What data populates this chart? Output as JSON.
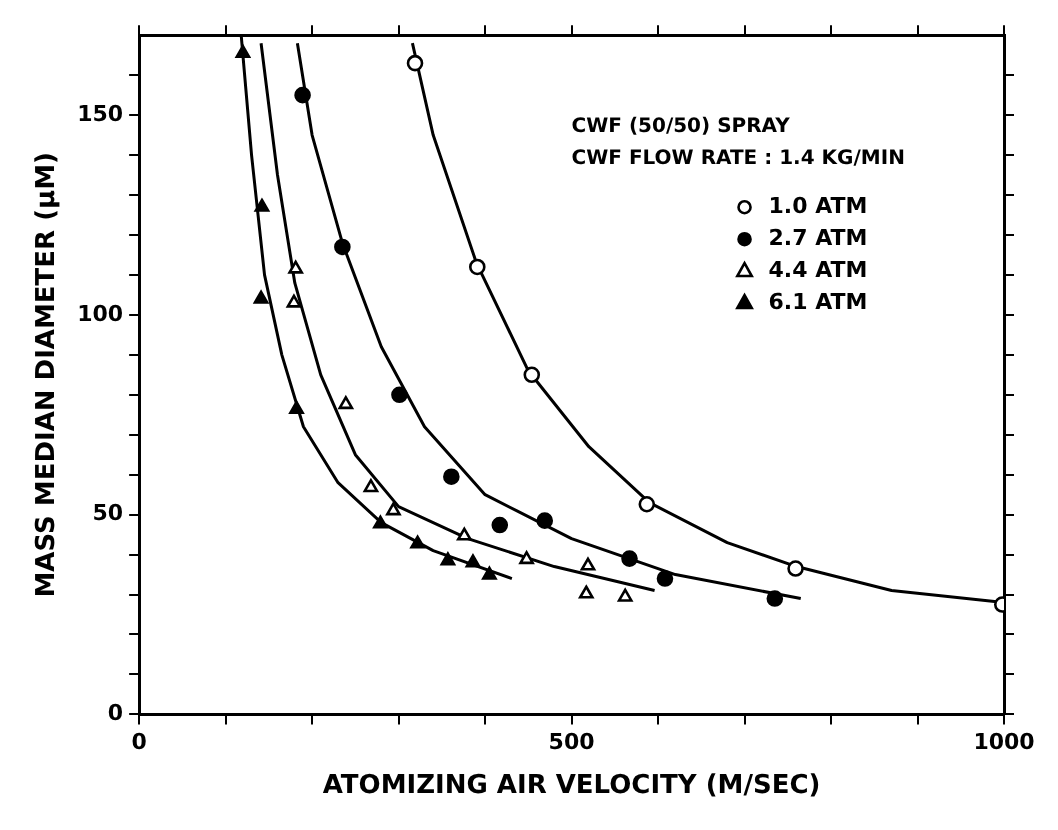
{
  "chart_data": {
    "type": "scatter",
    "xlabel": "ATOMIZING AIR VELOCITY (M/SEC)",
    "ylabel": "MASS MEDIAN DIAMETER (μM)",
    "xlim": [
      0,
      1000
    ],
    "ylim": [
      0,
      170
    ],
    "xticks": [
      0,
      {
        "value": 100,
        "label": null
      },
      {
        "value": 200,
        "label": null
      },
      {
        "value": 300,
        "label": null
      },
      {
        "value": 400,
        "label": null
      },
      500,
      {
        "value": 600,
        "label": null
      },
      {
        "value": 700,
        "label": null
      },
      {
        "value": 800,
        "label": null
      },
      {
        "value": 900,
        "label": null
      },
      1000
    ],
    "yticks": [
      0,
      {
        "value": 10,
        "label": null
      },
      {
        "value": 20,
        "label": null
      },
      {
        "value": 30,
        "label": null
      },
      {
        "value": 40,
        "label": null
      },
      50,
      {
        "value": 60,
        "label": null
      },
      {
        "value": 70,
        "label": null
      },
      {
        "value": 80,
        "label": null
      },
      {
        "value": 90,
        "label": null
      },
      100,
      {
        "value": 110,
        "label": null
      },
      {
        "value": 120,
        "label": null
      },
      {
        "value": 130,
        "label": null
      },
      {
        "value": 140,
        "label": null
      },
      150,
      {
        "value": 160,
        "label": null
      }
    ],
    "grid": false,
    "legend": "top right",
    "annotations": [
      "CWF (50/50) SPRAY",
      "CWF FLOW RATE : 1.4 KG/MIN"
    ],
    "series": [
      {
        "name": "1.0 ATM",
        "type": "scatter",
        "marker": "circle",
        "color": "#ffffff",
        "x": [
          319,
          391,
          454,
          587,
          759,
          998
        ],
        "values": [
          163,
          112,
          85,
          52.6,
          36.5,
          27.5
        ]
      },
      {
        "name": "2.7 ATM",
        "type": "scatter",
        "marker": "circle",
        "color": "#000000",
        "x": [
          189,
          235,
          301,
          361,
          417,
          469,
          567,
          608,
          735
        ],
        "values": [
          155,
          117,
          80,
          59.5,
          47.4,
          48.5,
          39,
          34,
          29
        ]
      },
      {
        "name": "4.4 ATM",
        "type": "scatter",
        "marker": "triangle",
        "color": "#ffffff",
        "x": [
          181,
          179,
          239,
          268,
          294,
          376,
          448,
          519,
          517,
          562
        ],
        "values": [
          111.5,
          103,
          77.6,
          56.8,
          51,
          44.7,
          38.8,
          37.2,
          30.2,
          29.4
        ]
      },
      {
        "name": "6.1 ATM",
        "type": "scatter",
        "marker": "triangle",
        "color": "#000000",
        "x": [
          120,
          142,
          141,
          182,
          279,
          322,
          357,
          386,
          405
        ],
        "values": [
          165.5,
          127,
          104,
          76.4,
          47.7,
          42.7,
          38.5,
          38,
          34.9
        ]
      },
      {
        "type": "line",
        "marker": "none",
        "color": "#000000",
        "x": [
          316,
          340,
          390,
          450,
          520,
          590,
          680,
          760,
          870,
          1000
        ],
        "values": [
          168,
          145,
          113,
          86,
          67,
          53,
          43,
          37,
          31,
          28
        ]
      },
      {
        "type": "line",
        "marker": "none",
        "color": "#000000",
        "x": [
          183,
          200,
          235,
          280,
          330,
          400,
          500,
          620,
          765
        ],
        "values": [
          168,
          145,
          118,
          92,
          72,
          55,
          44,
          35,
          29
        ]
      },
      {
        "type": "line",
        "marker": "none",
        "color": "#000000",
        "x": [
          141,
          160,
          180,
          210,
          250,
          300,
          380,
          480,
          596
        ],
        "values": [
          168,
          135,
          108,
          85,
          65,
          52,
          44,
          37,
          31
        ]
      },
      {
        "type": "line",
        "marker": "none",
        "color": "#000000",
        "x": [
          118,
          130,
          145,
          165,
          190,
          230,
          280,
          340,
          431
        ],
        "values": [
          170,
          140,
          110,
          90,
          72,
          58,
          48,
          41,
          34
        ]
      }
    ]
  }
}
